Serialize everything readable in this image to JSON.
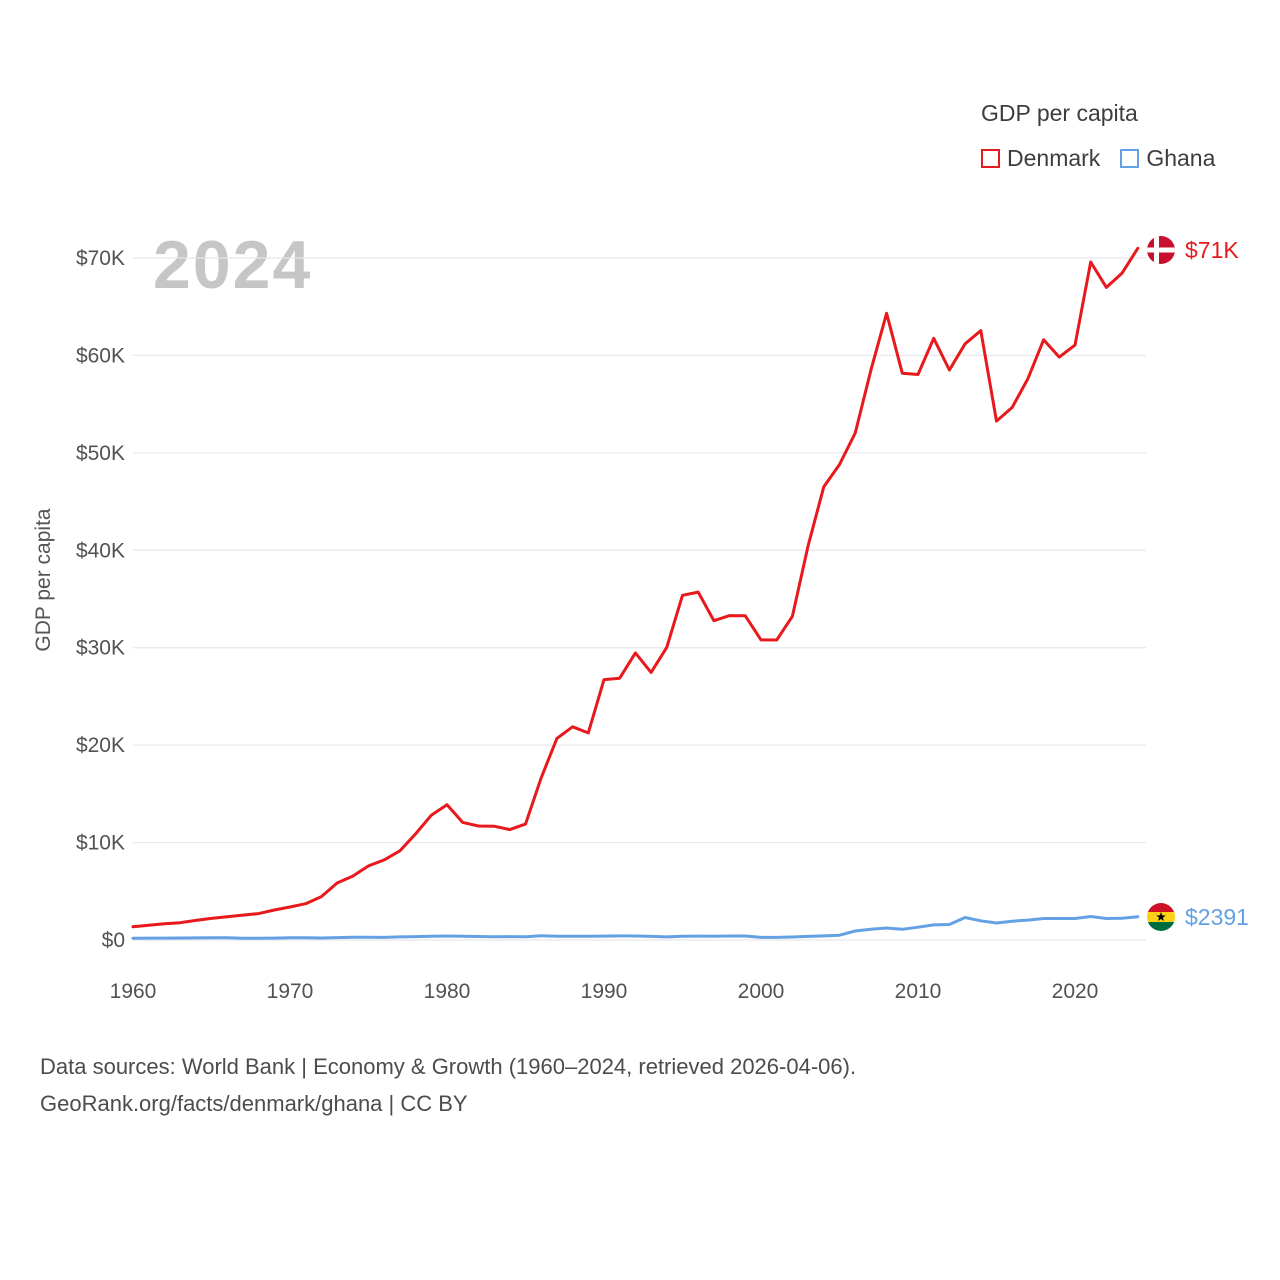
{
  "legend": {
    "title": "GDP per capita",
    "items": [
      {
        "label": "Denmark"
      },
      {
        "label": "Ghana"
      }
    ]
  },
  "watermark": "2024",
  "chart_data": {
    "type": "line",
    "title": "GDP per capita",
    "xlabel": "",
    "ylabel": "GDP per capita",
    "xlim": [
      1960,
      2024
    ],
    "ylim": [
      0,
      70000
    ],
    "grid": "horizontal",
    "legend_position": "top-right",
    "x_ticks": [
      1960,
      1970,
      1980,
      1990,
      2000,
      2010,
      2020
    ],
    "y_tick_values": [
      0,
      10000,
      20000,
      30000,
      40000,
      50000,
      60000,
      70000
    ],
    "y_tick_labels": [
      "$0",
      "$10K",
      "$20K",
      "$30K",
      "$40K",
      "$50K",
      "$60K",
      "$70K"
    ],
    "x": [
      1960,
      1961,
      1962,
      1963,
      1964,
      1965,
      1966,
      1967,
      1968,
      1969,
      1970,
      1971,
      1972,
      1973,
      1974,
      1975,
      1976,
      1977,
      1978,
      1979,
      1980,
      1981,
      1982,
      1983,
      1984,
      1985,
      1986,
      1987,
      1988,
      1989,
      1990,
      1991,
      1992,
      1993,
      1994,
      1995,
      1996,
      1997,
      1998,
      1999,
      2000,
      2001,
      2002,
      2003,
      2004,
      2005,
      2006,
      2007,
      2008,
      2009,
      2010,
      2011,
      2012,
      2013,
      2014,
      2015,
      2016,
      2017,
      2018,
      2019,
      2020,
      2021,
      2022,
      2023,
      2024
    ],
    "series": [
      {
        "name": "Denmark",
        "color": "#e8191c",
        "end_label": "$71K",
        "end_value": 71000,
        "values": [
          1365,
          1508,
          1662,
          1775,
          2011,
          2217,
          2388,
          2559,
          2707,
          3082,
          3390,
          3723,
          4459,
          5850,
          6554,
          7604,
          8222,
          9160,
          10895,
          12811,
          13886,
          12070,
          11699,
          11683,
          11329,
          11898,
          16645,
          20694,
          21878,
          21254,
          26732,
          26869,
          29470,
          27463,
          30046,
          35380,
          35712,
          32769,
          33301,
          33274,
          30804,
          30787,
          33229,
          40458,
          46512,
          48800,
          52027,
          58487,
          64322,
          58163,
          58041,
          61754,
          58508,
          61191,
          62549,
          53255,
          54664,
          57610,
          61599,
          59830,
          61063,
          69593,
          66983,
          68454,
          71000
        ]
      },
      {
        "name": "Ghana",
        "color": "#64a1e4",
        "end_label": "$2391",
        "end_value": 2391,
        "values": [
          183,
          190,
          193,
          204,
          213,
          235,
          221,
          185,
          175,
          196,
          224,
          230,
          201,
          243,
          280,
          280,
          270,
          320,
          350,
          392,
          412,
          390,
          360,
          340,
          350,
          340,
          440,
          390,
          390,
          380,
          400,
          420,
          410,
          370,
          320,
          380,
          400,
          390,
          410,
          410,
          263,
          270,
          304,
          370,
          423,
          495,
          921,
          1100,
          1234,
          1096,
          1312,
          1549,
          1588,
          2305,
          1969,
          1743,
          1931,
          2046,
          2202,
          2203,
          2206,
          2409,
          2204,
          2238,
          2391
        ]
      }
    ]
  },
  "footer": {
    "line1": "Data sources: World Bank | Economy & Growth (1960–2024, retrieved 2026-04-06).",
    "line2": "GeoRank.org/facts/denmark/ghana | CC BY"
  }
}
